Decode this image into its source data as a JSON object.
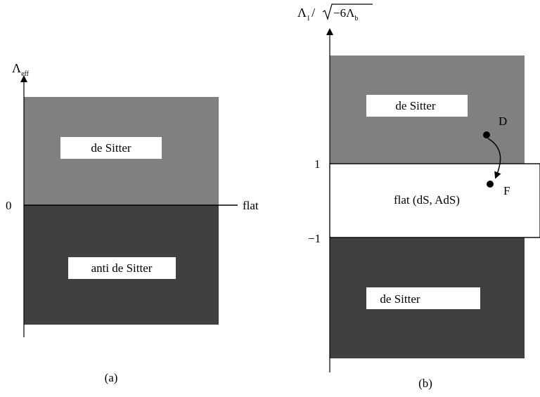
{
  "panel_a": {
    "axis_label_main": "Λ",
    "axis_label_sub": "eff",
    "tick_zero": "0",
    "flat_label": "flat",
    "upper_region_label": "de Sitter",
    "lower_region_label": "anti de Sitter",
    "caption": "(a)",
    "upper_color": "#808080",
    "lower_color": "#404040"
  },
  "panel_b": {
    "axis_label_main": "Λ",
    "axis_label_sub1": "1",
    "axis_label_slash": "/",
    "axis_label_sqrt_body": "−6Λ",
    "axis_label_sub2": "b",
    "tick_one": "1",
    "tick_minus_one": "−1",
    "upper_region_label": "de Sitter",
    "middle_region_label": "flat (dS, AdS)",
    "lower_region_label": "de Sitter",
    "point_d": "D",
    "point_f": "F",
    "caption": "(b)",
    "upper_color": "#808080",
    "middle_color": "#ffffff",
    "lower_color": "#404040"
  }
}
